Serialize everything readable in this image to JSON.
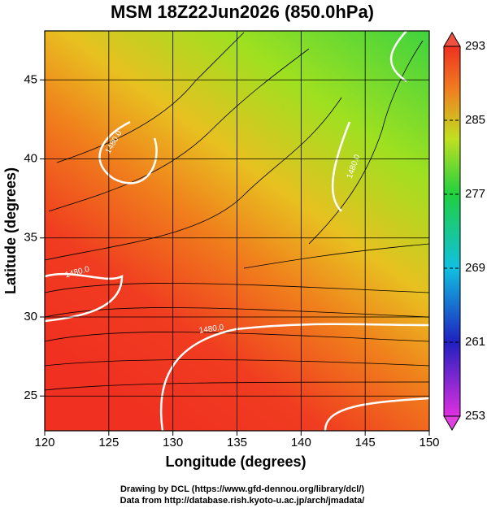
{
  "chart_data": {
    "type": "map",
    "title": "MSM 18Z22Jun2026 (850.0hPa)",
    "x_label": "Longitude (degrees)",
    "y_label": "Latitude  (degrees)",
    "xlim": [
      120,
      150
    ],
    "ylim": [
      22.8,
      48.1
    ],
    "xticks": [
      120,
      125,
      130,
      135,
      140,
      145,
      150
    ],
    "yticks": [
      25,
      30,
      35,
      40,
      45
    ],
    "grid": true,
    "colorbar": {
      "lim": [
        253,
        293
      ],
      "ticks": [
        253,
        261,
        269,
        277,
        285,
        293
      ]
    },
    "annotations": [
      "1480.0",
      "1480.0",
      "1480.0",
      "1480.0"
    ]
  },
  "footer": [
    "Drawing by DCL (https://www.gfd-dennou.org/library/dcl/)",
    "Data from http://database.rish.kyoto-u.ac.jp/arch/jmadata/"
  ]
}
